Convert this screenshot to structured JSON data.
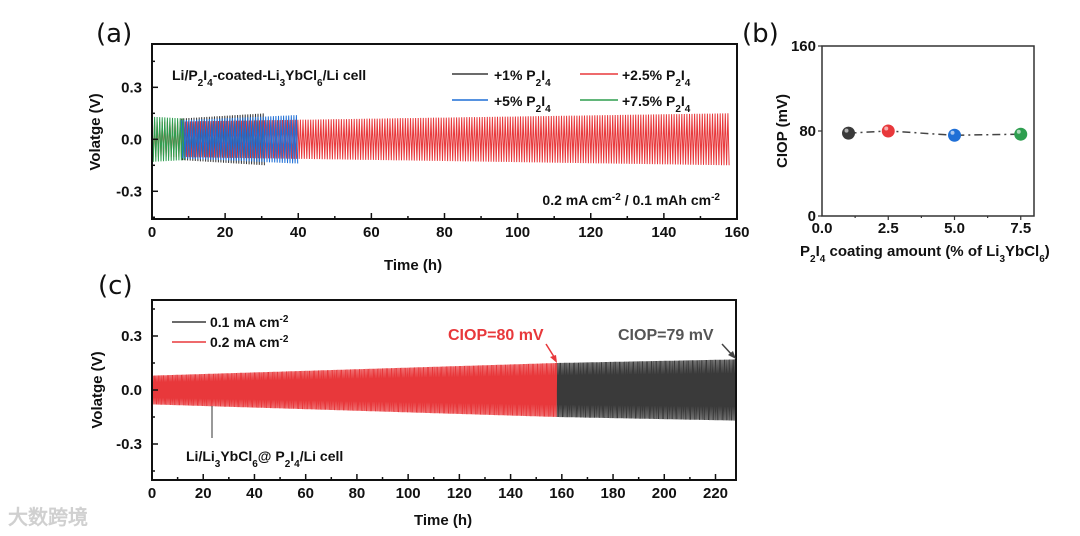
{
  "watermark": "大数跨境",
  "chart_data": [
    {
      "panel": "(a)",
      "type": "line",
      "xlabel": "Time (h)",
      "ylabel": "Volatge (V)",
      "xlim": [
        0,
        160
      ],
      "ylim": [
        -0.46,
        0.55
      ],
      "xticks": [
        "0",
        "20",
        "40",
        "60",
        "80",
        "100",
        "120",
        "140",
        "160"
      ],
      "yticks": [
        "0.3",
        "0.0",
        "-0.3"
      ],
      "ytick_values": [
        0.3,
        0.0,
        -0.3
      ],
      "title_annotation": "Li/P2I4-coated-Li3YbCl6/Li cell",
      "condition_annotation": "0.2 mA cm-2 / 0.1 mAh cm-2",
      "legend_position": "top-right",
      "series": [
        {
          "name": "+2.5% P2I4",
          "color": "#e8383b",
          "t_start": 0,
          "t_end": 158,
          "amp_start": 0.1,
          "amp_end": 0.15
        },
        {
          "name": "+1% P2I4",
          "color": "#3a3a3a",
          "t_start": 8,
          "t_end": 31,
          "amp_start": 0.12,
          "amp_end": 0.15
        },
        {
          "name": "+5% P2I4",
          "color": "#1f6fd6",
          "t_start": 8,
          "t_end": 40,
          "amp_start": 0.11,
          "amp_end": 0.14
        },
        {
          "name": "+7.5% P2I4",
          "color": "#2e9e4f",
          "t_start": 0,
          "t_end": 9,
          "amp_start": 0.13,
          "amp_end": 0.12
        }
      ]
    },
    {
      "panel": "(b)",
      "type": "scatter",
      "xlabel": "P2I4 coating amount (% of Li3YbCl6)",
      "ylabel": "CIOP (mV)",
      "xlim": [
        0,
        8
      ],
      "ylim": [
        0,
        160
      ],
      "xticks": [
        "0.0",
        "2.5",
        "5.0",
        "7.5"
      ],
      "xtick_values": [
        0,
        2.5,
        5,
        7.5
      ],
      "yticks": [
        "0",
        "80",
        "160"
      ],
      "ytick_values": [
        0,
        80,
        160
      ],
      "x": [
        1,
        2.5,
        5,
        7.5
      ],
      "y": [
        78,
        80,
        76,
        77
      ],
      "colors": [
        "#3a3a3a",
        "#e8383b",
        "#1f6fd6",
        "#2e9e4f"
      ]
    },
    {
      "panel": "(c)",
      "type": "line",
      "xlabel": "Time (h)",
      "ylabel": "Volatge (V)",
      "xlim": [
        0,
        228
      ],
      "ylim": [
        -0.5,
        0.5
      ],
      "xticks": [
        "0",
        "20",
        "40",
        "60",
        "80",
        "100",
        "120",
        "140",
        "160",
        "180",
        "200",
        "220"
      ],
      "yticks": [
        "0.3",
        "0.0",
        "-0.3"
      ],
      "ytick_values": [
        0.3,
        0.0,
        -0.3
      ],
      "cell_annotation": "Li/Li3YbCl6@ P2I4/Li cell",
      "legend_position": "top-left",
      "series": [
        {
          "name": "0.1 mA cm-2",
          "color": "#3a3a3a",
          "t_start": 158,
          "t_end": 228,
          "amp_start": 0.15,
          "amp_end": 0.17
        },
        {
          "name": "0.2 mA cm-2",
          "color": "#e8383b",
          "t_start": 0,
          "t_end": 158,
          "amp_start": 0.08,
          "amp_end": 0.15
        }
      ],
      "annotations": [
        {
          "text": "CIOP=80 mV",
          "color": "#e8383b",
          "x": 158,
          "y": 0.15
        },
        {
          "text": "CIOP=79 mV",
          "color": "#444444",
          "x": 228,
          "y": 0.17
        }
      ]
    }
  ]
}
